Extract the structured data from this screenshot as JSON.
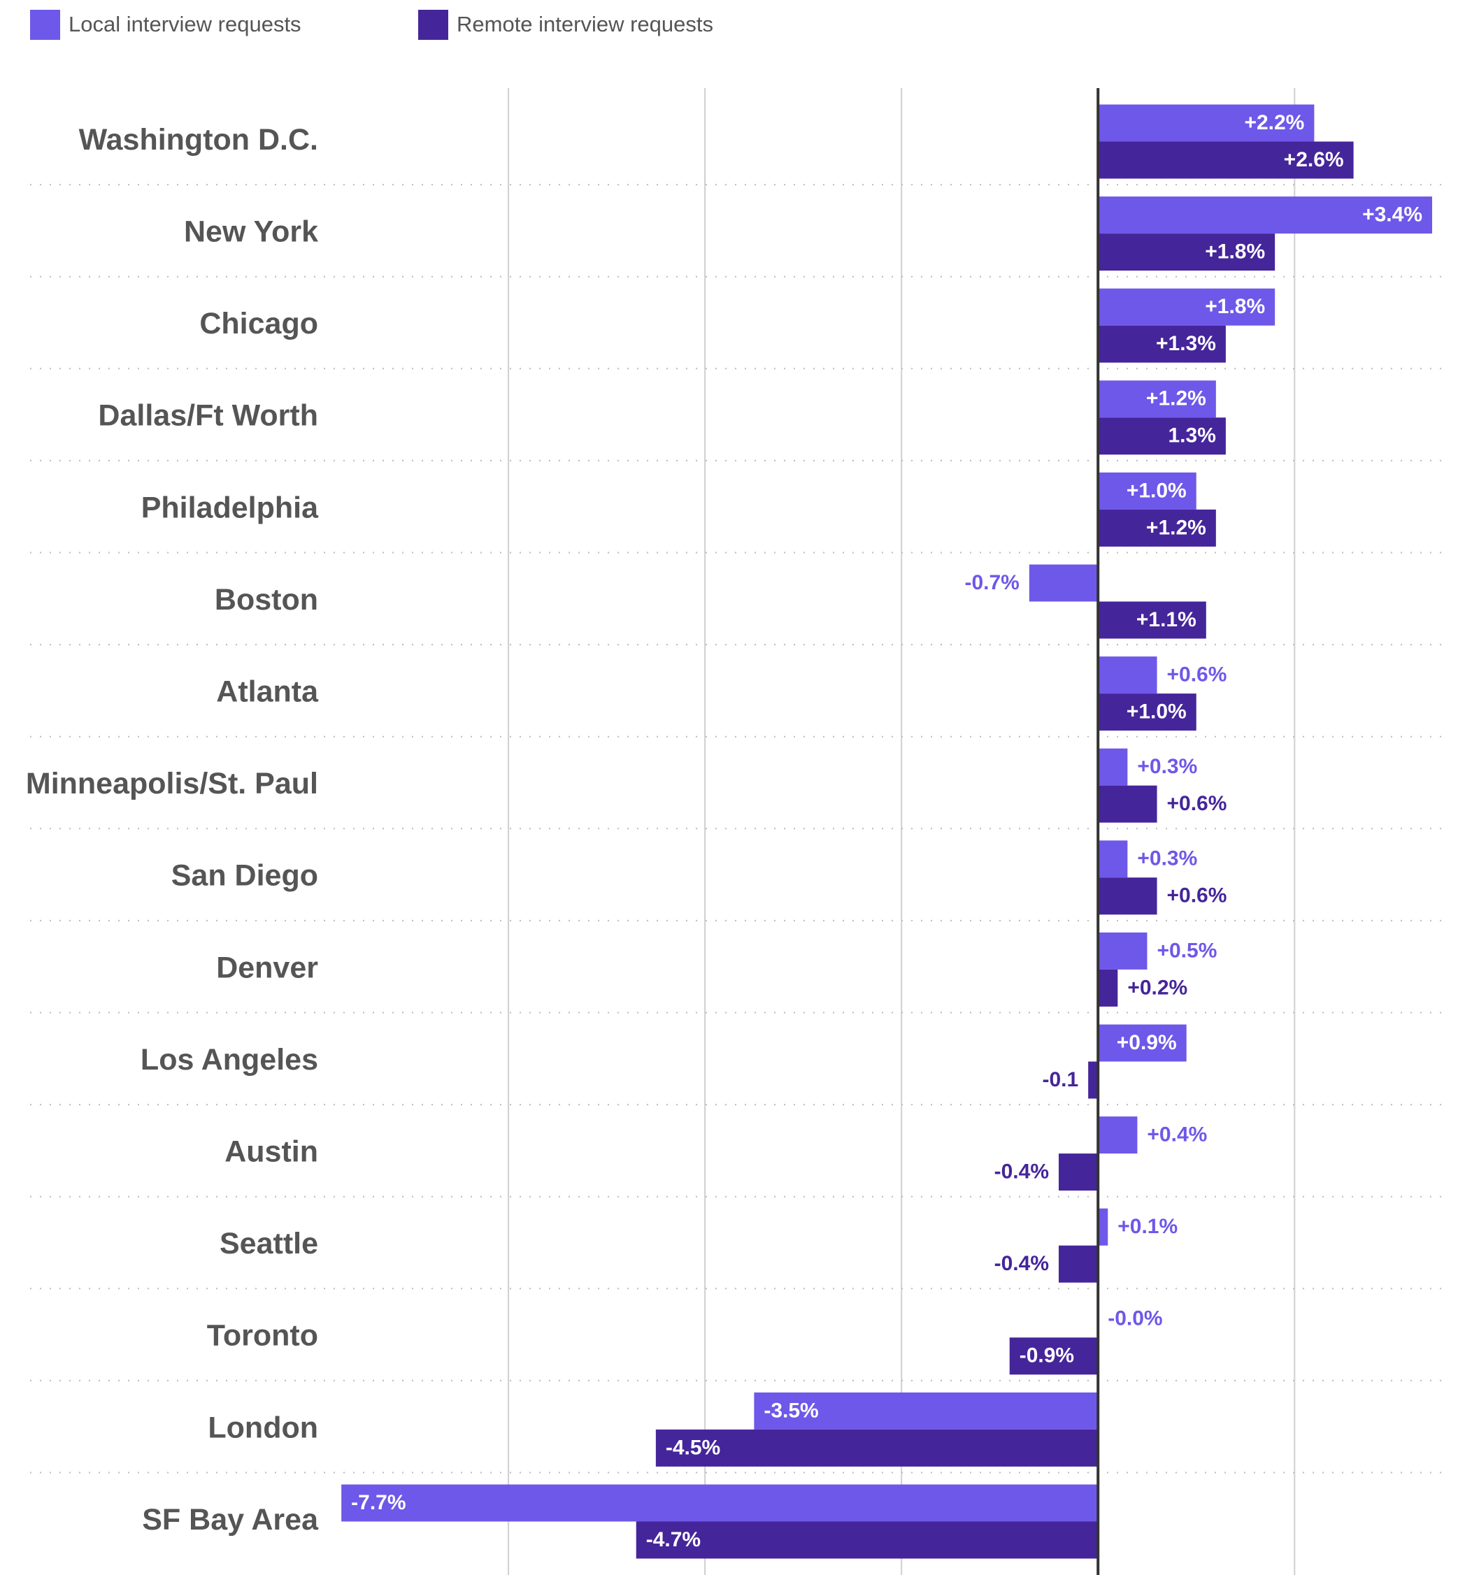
{
  "chart_data": {
    "type": "bar",
    "orientation": "horizontal",
    "categories": [
      "Washington D.C.",
      "New York",
      "Chicago",
      "Dallas/Ft Worth",
      "Philadelphia",
      "Boston",
      "Atlanta",
      "Minneapolis/St. Paul",
      "San Diego",
      "Denver",
      "Los Angeles",
      "Austin",
      "Seattle",
      "Toronto",
      "London",
      "SF Bay Area"
    ],
    "series": [
      {
        "name": "Local interview requests",
        "color": "#6e58e9",
        "values": [
          2.2,
          3.4,
          1.8,
          1.2,
          1.0,
          -0.7,
          0.6,
          0.3,
          0.3,
          0.5,
          0.9,
          0.4,
          0.1,
          0,
          -3.5,
          -7.7
        ],
        "value_labels": [
          "+2.2%",
          "+3.4%",
          "+1.8%",
          "+1.2%",
          "+1.0%",
          "-0.7%",
          "+0.6%",
          "+0.3%",
          "+0.3%",
          "+0.5%",
          "+0.9%",
          "+0.4%",
          "+0.1%",
          "-0.0%",
          "-3.5%",
          "-7.7%"
        ]
      },
      {
        "name": "Remote interview requests",
        "color": "#45259a",
        "values": [
          2.6,
          1.8,
          1.3,
          1.3,
          1.2,
          1.1,
          1.0,
          0.6,
          0.6,
          0.2,
          -0.1,
          -0.4,
          -0.4,
          -0.9,
          -4.5,
          -4.7
        ],
        "value_labels": [
          "+2.6%",
          "+1.8%",
          "+1.3%",
          "1.3%",
          "+1.2%",
          "+1.1%",
          "+1.0%",
          "+0.6%",
          "+0.6%",
          "+0.2%",
          "-0.1",
          "-0.4%",
          "-0.4%",
          "-0.9%",
          "-4.5%",
          "-4.7%"
        ]
      }
    ],
    "xlim": [
      -8,
      3.4
    ],
    "xticks": [
      -6,
      -4,
      -2,
      0,
      2
    ],
    "grid": true,
    "legend": "top-left"
  }
}
